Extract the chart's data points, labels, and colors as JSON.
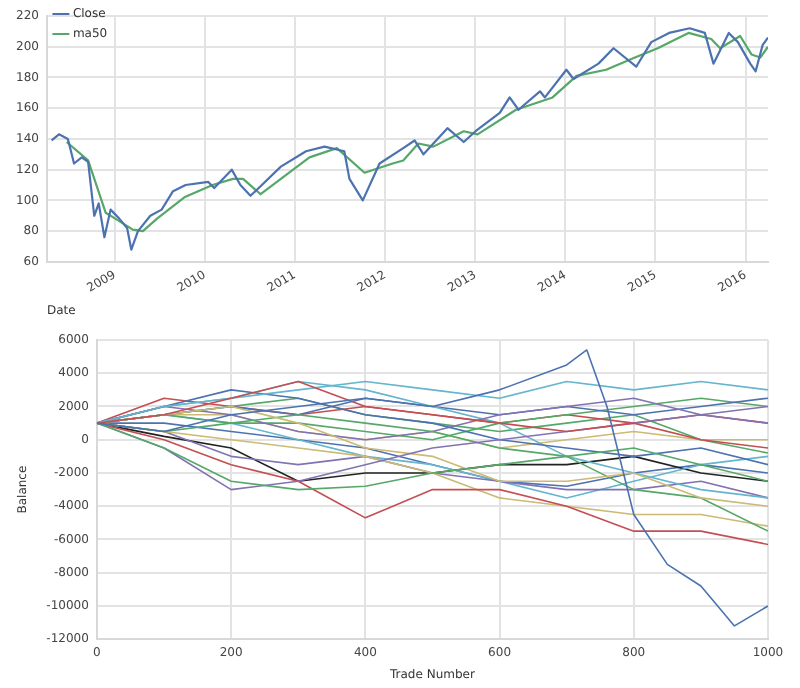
{
  "chart_data": [
    {
      "type": "line",
      "xlabel": "Date",
      "xlim": [
        "2008-04",
        "2016-04"
      ],
      "xticks": [
        "2009",
        "2010",
        "2011",
        "2012",
        "2013",
        "2014",
        "2015",
        "2016"
      ],
      "ylim": [
        60,
        220
      ],
      "yticks": [
        60,
        80,
        100,
        120,
        140,
        160,
        180,
        200,
        220
      ],
      "grid": true,
      "legend": "top left",
      "marker": "none",
      "series": [
        {
          "name": "Close",
          "color": "#4c72b0",
          "x": [
            "2008-04-20",
            "2008-05-20",
            "2008-06-25",
            "2008-07-20",
            "2008-08-20",
            "2008-09-15",
            "2008-10-10",
            "2008-10-28",
            "2008-11-20",
            "2008-12-15",
            "2009-01-20",
            "2009-02-20",
            "2009-03-09",
            "2009-04-05",
            "2009-05-25",
            "2009-07-10",
            "2009-08-25",
            "2009-10-15",
            "2010-01-15",
            "2010-02-08",
            "2010-04-20",
            "2010-05-25",
            "2010-07-05",
            "2010-08-20",
            "2010-11-05",
            "2011-02-15",
            "2011-05-01",
            "2011-07-20",
            "2011-08-10",
            "2011-10-03",
            "2011-12-10",
            "2012-03-15",
            "2012-04-30",
            "2012-06-05",
            "2012-09-10",
            "2012-11-15",
            "2013-01-02",
            "2013-04-10",
            "2013-05-20",
            "2013-06-25",
            "2013-09-20",
            "2013-10-10",
            "2014-01-05",
            "2014-02-03",
            "2014-05-15",
            "2014-07-15",
            "2014-10-15",
            "2014-12-15",
            "2015-02-25",
            "2015-05-20",
            "2015-07-20",
            "2015-08-24",
            "2015-10-25",
            "2015-12-01",
            "2016-01-20",
            "2016-02-11",
            "2016-03-10",
            "2016-04-01"
          ],
          "values": [
            139,
            143,
            140,
            124,
            128,
            125,
            90,
            98,
            76,
            94,
            88,
            82,
            68,
            80,
            90,
            94,
            106,
            110,
            112,
            108,
            120,
            110,
            103,
            110,
            122,
            132,
            135,
            132,
            114,
            100,
            124,
            134,
            139,
            130,
            147,
            138,
            145,
            157,
            167,
            159,
            171,
            167,
            185,
            179,
            189,
            199,
            187,
            203,
            209,
            212,
            209,
            189,
            209,
            203,
            189,
            184,
            201,
            206
          ]
        },
        {
          "name": "ma50",
          "color": "#55a868",
          "x": [
            "2008-06-20",
            "2008-09-15",
            "2008-11-25",
            "2009-01-05",
            "2009-03-15",
            "2009-04-25",
            "2009-06-20",
            "2009-10-10",
            "2010-02-01",
            "2010-04-25",
            "2010-06-05",
            "2010-08-15",
            "2010-11-05",
            "2011-03-01",
            "2011-06-20",
            "2011-10-10",
            "2012-02-01",
            "2012-03-15",
            "2012-05-15",
            "2012-07-15",
            "2012-11-15",
            "2013-01-10",
            "2013-06-15",
            "2013-11-10",
            "2014-02-15",
            "2014-06-15",
            "2014-10-10",
            "2015-01-10",
            "2015-05-15",
            "2015-08-15",
            "2015-09-20",
            "2015-12-10",
            "2016-01-25",
            "2016-03-01",
            "2016-04-01"
          ],
          "values": [
            138,
            126,
            92,
            88,
            81,
            80,
            88,
            102,
            110,
            114,
            114,
            104,
            114,
            128,
            134,
            118,
            124,
            126,
            137,
            135,
            145,
            143,
            159,
            167,
            181,
            185,
            193,
            199,
            209,
            205,
            199,
            207,
            195,
            193,
            200
          ]
        }
      ]
    },
    {
      "type": "line",
      "xlabel": "Trade Number",
      "ylabel": "Balance",
      "x": [
        0,
        100,
        200,
        300,
        400,
        500,
        600,
        700,
        800,
        900,
        1000
      ],
      "xlim": [
        0,
        1000
      ],
      "xticks": [
        0,
        200,
        400,
        600,
        800,
        1000
      ],
      "ylim": [
        -12000,
        6000
      ],
      "yticks": [
        -12000,
        -10000,
        -8000,
        -6000,
        -4000,
        -2000,
        0,
        2000,
        4000,
        6000
      ],
      "grid": true,
      "marker": "none",
      "series": [
        {
          "color": "#4c72b0",
          "x": [
            0,
            100,
            200,
            300,
            400,
            500,
            600,
            700,
            730,
            760,
            800,
            850,
            900,
            950,
            1000
          ],
          "values": [
            1000,
            500,
            1500,
            2000,
            2500,
            2000,
            3000,
            4500,
            5400,
            2000,
            -4500,
            -7500,
            -8800,
            -11200,
            -10000
          ]
        },
        {
          "color": "#55a868",
          "values": [
            1000,
            -500,
            -2500,
            -3000,
            -2800,
            -2000,
            -1500,
            -1000,
            -500,
            -1500,
            -2500
          ]
        },
        {
          "color": "#c44e52",
          "values": [
            1000,
            1500,
            2500,
            3500,
            2000,
            1500,
            1000,
            500,
            1000,
            0,
            -500
          ]
        },
        {
          "color": "#8172b2",
          "values": [
            1000,
            -500,
            -3000,
            -2500,
            -1500,
            -500,
            0,
            500,
            1000,
            1500,
            1000
          ]
        },
        {
          "color": "#ccb974",
          "values": [
            1000,
            1500,
            2000,
            1000,
            -500,
            -1000,
            -2500,
            -2500,
            -2000,
            -3500,
            -4000
          ]
        },
        {
          "color": "#64b5cd",
          "values": [
            1000,
            2000,
            2500,
            3000,
            3500,
            3000,
            2500,
            3500,
            3000,
            3500,
            3000
          ]
        },
        {
          "color": "#4c72b0",
          "values": [
            1000,
            2000,
            3000,
            2500,
            1500,
            1000,
            0,
            -500,
            -1000,
            -500,
            -1500
          ]
        },
        {
          "color": "#55a868",
          "values": [
            1000,
            500,
            1000,
            1500,
            1000,
            500,
            -500,
            -1000,
            -3000,
            -3500,
            -5500
          ]
        },
        {
          "color": "#c44e52",
          "values": [
            1000,
            0,
            -1500,
            -2500,
            -4700,
            -3000,
            -3000,
            -4000,
            -5500,
            -5500,
            -6300
          ]
        },
        {
          "color": "#8172b2",
          "values": [
            1000,
            2000,
            1500,
            500,
            0,
            500,
            1500,
            2000,
            2500,
            1500,
            2000
          ]
        },
        {
          "color": "#ccb974",
          "values": [
            1000,
            500,
            0,
            -500,
            -1000,
            -2000,
            -3500,
            -4000,
            -4500,
            -4500,
            -5200
          ]
        },
        {
          "color": "#64b5cd",
          "values": [
            1000,
            2000,
            2500,
            3500,
            3000,
            2000,
            1000,
            -1000,
            -2000,
            -3000,
            -3500
          ]
        },
        {
          "color": "#4c72b0",
          "values": [
            1000,
            1500,
            2000,
            1500,
            2500,
            2000,
            1500,
            2000,
            1500,
            2000,
            2500
          ]
        },
        {
          "color": "#55a868",
          "values": [
            1000,
            1500,
            1000,
            1000,
            500,
            0,
            1000,
            1500,
            2000,
            2500,
            2000
          ]
        },
        {
          "color": "#c44e52",
          "values": [
            1000,
            2500,
            2000,
            1500,
            2000,
            1500,
            1000,
            1500,
            1000,
            1500,
            1000
          ]
        },
        {
          "color": "#8172b2",
          "values": [
            1000,
            500,
            -1000,
            -1500,
            -1000,
            -2000,
            -2500,
            -3000,
            -3000,
            -2500,
            -3500
          ]
        },
        {
          "color": "#ccb974",
          "values": [
            1000,
            1500,
            1500,
            500,
            0,
            500,
            -500,
            0,
            500,
            0,
            0
          ]
        },
        {
          "color": "#64b5cd",
          "values": [
            1000,
            1500,
            1000,
            0,
            -1000,
            -1500,
            -2500,
            -3500,
            -2500,
            -1500,
            -1000
          ]
        },
        {
          "color": "#222222",
          "values": [
            1000,
            200,
            -500,
            -2500,
            -2000,
            -2000,
            -1500,
            -1500,
            -1000,
            -2000,
            -2500
          ]
        },
        {
          "color": "#4c72b0",
          "values": [
            1000,
            1000,
            500,
            0,
            -500,
            -1500,
            -2500,
            -2800,
            -2000,
            -1500,
            -2000
          ]
        },
        {
          "color": "#55a868",
          "values": [
            1000,
            1500,
            2000,
            2500,
            1500,
            1000,
            500,
            1000,
            1500,
            0,
            -800
          ]
        }
      ]
    }
  ]
}
